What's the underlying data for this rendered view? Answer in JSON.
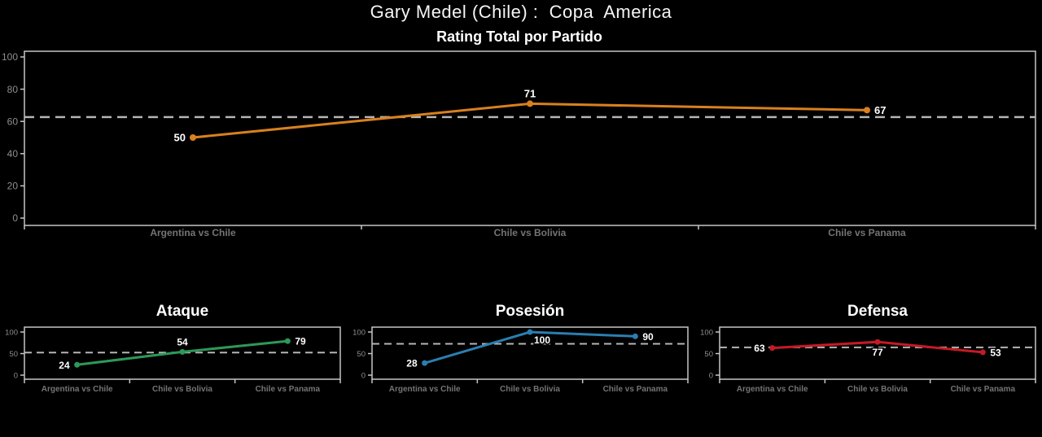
{
  "header": {
    "title": "Gary Medel (Chile) :  Copa  America"
  },
  "colors": {
    "background": "#000000",
    "title": "#f5f5f5",
    "spine": "#c6c6c6",
    "tick_label": "#8e8e8e",
    "category_label": "#747474",
    "mean_line": "#b5b5b5",
    "value_label": "#ffffff",
    "rating_line": "#d9801f",
    "ataque_line": "#2d9858",
    "posesion_line": "#2b7eb2",
    "defensa_line": "#c41a26"
  },
  "chart_data": [
    {
      "type": "line",
      "name": "rating-total",
      "title": "Rating Total por Partido",
      "categories": [
        "Argentina vs Chile",
        "Chile vs Bolivia",
        "Chile vs Panama"
      ],
      "values": [
        50,
        71,
        67
      ],
      "value_labels": [
        "50",
        "71",
        "67"
      ],
      "label_placements": [
        "left",
        "above",
        "right"
      ],
      "mean_line": 62.7,
      "color_key": "rating_line",
      "ylim": [
        0,
        100
      ],
      "yticks": [
        0,
        20,
        40,
        60,
        80,
        100
      ],
      "grid": false,
      "legend": "none"
    },
    {
      "type": "line",
      "name": "ataque",
      "title": "Ataque",
      "categories": [
        "Argentina vs Chile",
        "Chile vs Bolivia",
        "Chile vs Panama"
      ],
      "values": [
        24,
        54,
        79
      ],
      "value_labels": [
        "24",
        "54",
        "79"
      ],
      "label_placements": [
        "left",
        "above",
        "right"
      ],
      "mean_line": 52.3,
      "color_key": "ataque_line",
      "ylim": [
        0,
        100
      ],
      "yticks": [
        0,
        50,
        100
      ],
      "grid": false,
      "legend": "none"
    },
    {
      "type": "line",
      "name": "posesion",
      "title": "Posesión",
      "categories": [
        "Argentina vs Chile",
        "Chile vs Bolivia",
        "Chile vs Panama"
      ],
      "values": [
        28,
        100,
        90
      ],
      "value_labels": [
        "28",
        "100",
        "90"
      ],
      "label_placements": [
        "left",
        "below-right",
        "right"
      ],
      "mean_line": 72.7,
      "color_key": "posesion_line",
      "ylim": [
        0,
        100
      ],
      "yticks": [
        0,
        50,
        100
      ],
      "grid": false,
      "legend": "none"
    },
    {
      "type": "line",
      "name": "defensa",
      "title": "Defensa",
      "categories": [
        "Argentina vs Chile",
        "Chile vs Bolivia",
        "Chile vs Panama"
      ],
      "values": [
        63,
        77,
        53
      ],
      "value_labels": [
        "63",
        "77",
        "53"
      ],
      "label_placements": [
        "left",
        "below",
        "right"
      ],
      "mean_line": 64.3,
      "color_key": "defensa_line",
      "ylim": [
        0,
        100
      ],
      "yticks": [
        0,
        50,
        100
      ],
      "grid": false,
      "legend": "none"
    }
  ]
}
